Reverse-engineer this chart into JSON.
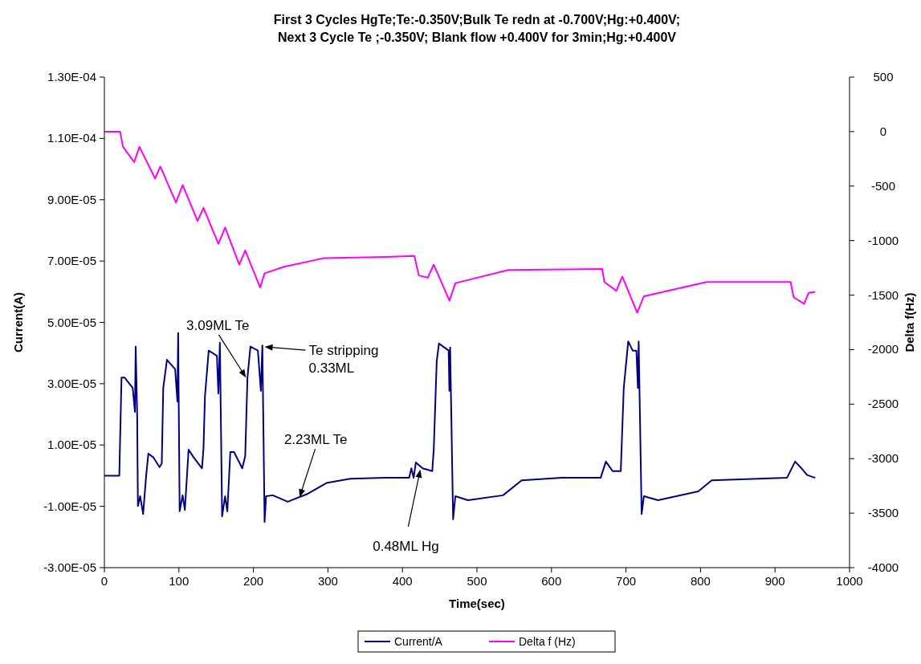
{
  "chart_data": {
    "type": "line",
    "title": "First 3 Cycles HgTe;Te:-0.350V;Bulk Te redn at -0.700V;Hg:+0.400V;\nNext 3 Cycle Te ;-0.350V; Blank flow +0.400V for 3min;Hg:+0.400V",
    "xlabel": "Time(sec)",
    "ylabel": "Current(A)",
    "y2label": "Delta f(Hz)",
    "xlim": [
      0,
      1000
    ],
    "xticks": [
      0,
      100,
      200,
      300,
      400,
      500,
      600,
      700,
      800,
      900,
      1000
    ],
    "ylim": [
      -3e-05,
      0.00013
    ],
    "yticks": [
      {
        "value": -3e-05,
        "label": "-3.00E-05"
      },
      {
        "value": -1e-05,
        "label": "-1.00E-05"
      },
      {
        "value": 1e-05,
        "label": "1.00E-05"
      },
      {
        "value": 3e-05,
        "label": "3.00E-05"
      },
      {
        "value": 5e-05,
        "label": "5.00E-05"
      },
      {
        "value": 7e-05,
        "label": "7.00E-05"
      },
      {
        "value": 9e-05,
        "label": "9.00E-05"
      },
      {
        "value": 0.00011,
        "label": "1.10E-04"
      },
      {
        "value": 0.00013,
        "label": "1.30E-04"
      }
    ],
    "y2lim": [
      -4000,
      500
    ],
    "y2ticks": [
      -4000,
      -3500,
      -3000,
      -2500,
      -2000,
      -1500,
      -1000,
      -500,
      0,
      500
    ],
    "legend": "bottom",
    "grid": false,
    "series": [
      {
        "name": "Current/A",
        "color": "#000080",
        "x": [
          0,
          20,
          23,
          27,
          38,
          41,
          42,
          44,
          45,
          48,
          52,
          56,
          59,
          66,
          74,
          77,
          79,
          84,
          95,
          98,
          99,
          101,
          105,
          108,
          113,
          120,
          131,
          133,
          135,
          140,
          151,
          153,
          155,
          158,
          162,
          165,
          169,
          174,
          185,
          189,
          192,
          196,
          206,
          210,
          212,
          215,
          217,
          226,
          246,
          273,
          298,
          330,
          377,
          409,
          412,
          415,
          418,
          427,
          440,
          442,
          446,
          449,
          462,
          463,
          464,
          468,
          471,
          488,
          535,
          560,
          614,
          666,
          673,
          682,
          693,
          697,
          703,
          709,
          714,
          716,
          717,
          721,
          724,
          743,
          797,
          815,
          916,
          927,
          937,
          943,
          954
        ],
        "values": [
          0,
          0,
          3.2e-05,
          3.2e-05,
          2.86e-05,
          2.08e-05,
          4.21e-05,
          1.98e-05,
          -9.9e-06,
          -6.7e-06,
          -1.25e-05,
          -2e-07,
          7.2e-06,
          5.9e-06,
          2.8e-06,
          4e-06,
          2.86e-05,
          3.78e-05,
          3.47e-05,
          2.42e-05,
          4.65e-05,
          -1.16e-05,
          -6.4e-06,
          -1.12e-05,
          8.5e-06,
          5.9e-06,
          2.4e-06,
          9e-06,
          2.6e-05,
          4.08e-05,
          3.91e-05,
          2.68e-05,
          4.34e-05,
          -1.33e-05,
          -6.7e-06,
          -1.16e-05,
          7.7e-06,
          7.7e-06,
          2.4e-06,
          6.4e-06,
          3.2e-05,
          4.21e-05,
          4.08e-05,
          2.77e-05,
          4.25e-05,
          -1.51e-05,
          -6.7e-06,
          -6.4e-06,
          -8.5e-06,
          -5.9e-06,
          -2.4e-06,
          -1e-06,
          -7e-07,
          -7e-07,
          2.4e-06,
          -7e-07,
          4.3e-06,
          2.4e-06,
          1.5e-06,
          8.5e-06,
          3.73e-05,
          4.31e-05,
          4.08e-05,
          2.77e-05,
          4.18e-05,
          -1.42e-05,
          -6.7e-06,
          -8e-06,
          -6.4e-06,
          -1.5e-06,
          -7e-07,
          -7e-07,
          4.6e-06,
          1.5e-06,
          1.5e-06,
          2.86e-05,
          4.38e-05,
          4.08e-05,
          4.08e-05,
          2.86e-05,
          4.38e-05,
          -1.25e-05,
          -6.7e-06,
          -8e-06,
          -5.1e-06,
          -1.5e-06,
          -7e-07,
          4.6e-06,
          2e-06,
          2e-07,
          -7e-07
        ]
      },
      {
        "name": "Delta f (Hz)",
        "color": "#ff00ff",
        "axis": "y2",
        "x": [
          0,
          21,
          25,
          40,
          47,
          68,
          75,
          96,
          105,
          125,
          133,
          153,
          162,
          181,
          189,
          209,
          215,
          241,
          295,
          377,
          416,
          422,
          434,
          442,
          463,
          471,
          542,
          668,
          671,
          687,
          695,
          715,
          724,
          808,
          921,
          925,
          939,
          945,
          954
        ],
        "values": [
          0,
          0,
          -140,
          -280,
          -140,
          -430,
          -320,
          -650,
          -490,
          -820,
          -700,
          -1030,
          -880,
          -1220,
          -1090,
          -1430,
          -1300,
          -1240,
          -1160,
          -1150,
          -1140,
          -1320,
          -1340,
          -1220,
          -1550,
          -1390,
          -1270,
          -1260,
          -1380,
          -1460,
          -1330,
          -1660,
          -1510,
          -1380,
          -1380,
          -1520,
          -1580,
          -1480,
          -1470
        ]
      }
    ],
    "annotations": [
      {
        "text": "3.09ML Te",
        "x": 190,
        "y": 3.2e-05
      },
      {
        "text": "Te stripping\n0.33ML",
        "x": 215,
        "y": 4.2e-05
      },
      {
        "text": "2.23ML Te",
        "x": 262,
        "y": -7e-06
      },
      {
        "text": "0.48ML Hg",
        "x": 424,
        "y": 2e-06
      }
    ]
  }
}
